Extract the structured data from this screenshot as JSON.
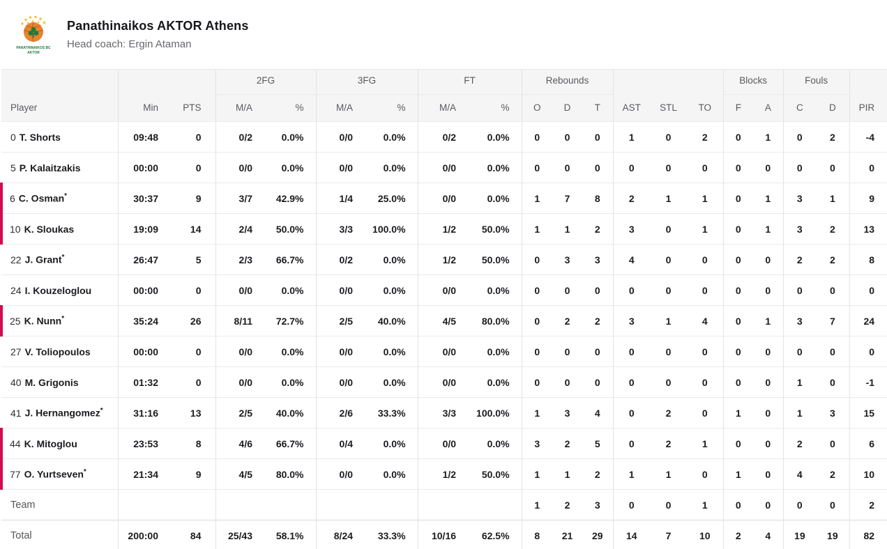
{
  "header": {
    "team_name": "Panathinaikos AKTOR Athens",
    "coach": "Head coach: Ergin Ataman",
    "logo": {
      "line1": "PANATHINAIKOS BC",
      "line2": "AKTOR",
      "ball_color": "#e8832e",
      "clover_color": "#1f7a3d",
      "rays_color": "#f2c233"
    }
  },
  "colors": {
    "on_court_accent": "#d40b4e",
    "header_background": "#f5f5f6",
    "row_border": "#ebebed"
  },
  "table": {
    "group_headers": {
      "fg2": "2FG",
      "fg3": "3FG",
      "ft": "FT",
      "rebounds": "Rebounds",
      "blocks": "Blocks",
      "fouls": "Fouls"
    },
    "columns": {
      "player": "Player",
      "min": "Min",
      "pts": "PTS",
      "ma": "M/A",
      "pct": "%",
      "reb_o": "O",
      "reb_d": "D",
      "reb_t": "T",
      "ast": "AST",
      "stl": "STL",
      "to": "TO",
      "blk_f": "F",
      "blk_a": "A",
      "foul_c": "C",
      "foul_d": "D",
      "pir": "PIR"
    },
    "starter_mark": "*",
    "rows": [
      {
        "number": "0",
        "name": "T. Shorts",
        "starter": false,
        "on_court": false,
        "min": "09:48",
        "pts": "0",
        "fg2_ma": "0/2",
        "fg2_pct": "0.0%",
        "fg3_ma": "0/0",
        "fg3_pct": "0.0%",
        "ft_ma": "0/2",
        "ft_pct": "0.0%",
        "reb_o": "0",
        "reb_d": "0",
        "reb_t": "0",
        "ast": "1",
        "stl": "0",
        "to": "2",
        "blk_f": "0",
        "blk_a": "1",
        "foul_c": "0",
        "foul_d": "2",
        "pir": "-4"
      },
      {
        "number": "5",
        "name": "P. Kalaitzakis",
        "starter": false,
        "on_court": false,
        "min": "00:00",
        "pts": "0",
        "fg2_ma": "0/0",
        "fg2_pct": "0.0%",
        "fg3_ma": "0/0",
        "fg3_pct": "0.0%",
        "ft_ma": "0/0",
        "ft_pct": "0.0%",
        "reb_o": "0",
        "reb_d": "0",
        "reb_t": "0",
        "ast": "0",
        "stl": "0",
        "to": "0",
        "blk_f": "0",
        "blk_a": "0",
        "foul_c": "0",
        "foul_d": "0",
        "pir": "0"
      },
      {
        "number": "6",
        "name": "C. Osman",
        "starter": true,
        "on_court": true,
        "min": "30:37",
        "pts": "9",
        "fg2_ma": "3/7",
        "fg2_pct": "42.9%",
        "fg3_ma": "1/4",
        "fg3_pct": "25.0%",
        "ft_ma": "0/0",
        "ft_pct": "0.0%",
        "reb_o": "1",
        "reb_d": "7",
        "reb_t": "8",
        "ast": "2",
        "stl": "1",
        "to": "1",
        "blk_f": "0",
        "blk_a": "1",
        "foul_c": "3",
        "foul_d": "1",
        "pir": "9"
      },
      {
        "number": "10",
        "name": "K. Sloukas",
        "starter": false,
        "on_court": true,
        "min": "19:09",
        "pts": "14",
        "fg2_ma": "2/4",
        "fg2_pct": "50.0%",
        "fg3_ma": "3/3",
        "fg3_pct": "100.0%",
        "ft_ma": "1/2",
        "ft_pct": "50.0%",
        "reb_o": "1",
        "reb_d": "1",
        "reb_t": "2",
        "ast": "3",
        "stl": "0",
        "to": "1",
        "blk_f": "0",
        "blk_a": "1",
        "foul_c": "3",
        "foul_d": "2",
        "pir": "13"
      },
      {
        "number": "22",
        "name": "J. Grant",
        "starter": true,
        "on_court": false,
        "min": "26:47",
        "pts": "5",
        "fg2_ma": "2/3",
        "fg2_pct": "66.7%",
        "fg3_ma": "0/2",
        "fg3_pct": "0.0%",
        "ft_ma": "1/2",
        "ft_pct": "50.0%",
        "reb_o": "0",
        "reb_d": "3",
        "reb_t": "3",
        "ast": "4",
        "stl": "0",
        "to": "0",
        "blk_f": "0",
        "blk_a": "0",
        "foul_c": "2",
        "foul_d": "2",
        "pir": "8"
      },
      {
        "number": "24",
        "name": "I. Kouzeloglou",
        "starter": false,
        "on_court": false,
        "min": "00:00",
        "pts": "0",
        "fg2_ma": "0/0",
        "fg2_pct": "0.0%",
        "fg3_ma": "0/0",
        "fg3_pct": "0.0%",
        "ft_ma": "0/0",
        "ft_pct": "0.0%",
        "reb_o": "0",
        "reb_d": "0",
        "reb_t": "0",
        "ast": "0",
        "stl": "0",
        "to": "0",
        "blk_f": "0",
        "blk_a": "0",
        "foul_c": "0",
        "foul_d": "0",
        "pir": "0"
      },
      {
        "number": "25",
        "name": "K. Nunn",
        "starter": true,
        "on_court": true,
        "min": "35:24",
        "pts": "26",
        "fg2_ma": "8/11",
        "fg2_pct": "72.7%",
        "fg3_ma": "2/5",
        "fg3_pct": "40.0%",
        "ft_ma": "4/5",
        "ft_pct": "80.0%",
        "reb_o": "0",
        "reb_d": "2",
        "reb_t": "2",
        "ast": "3",
        "stl": "1",
        "to": "4",
        "blk_f": "0",
        "blk_a": "1",
        "foul_c": "3",
        "foul_d": "7",
        "pir": "24"
      },
      {
        "number": "27",
        "name": "V. Toliopoulos",
        "starter": false,
        "on_court": false,
        "min": "00:00",
        "pts": "0",
        "fg2_ma": "0/0",
        "fg2_pct": "0.0%",
        "fg3_ma": "0/0",
        "fg3_pct": "0.0%",
        "ft_ma": "0/0",
        "ft_pct": "0.0%",
        "reb_o": "0",
        "reb_d": "0",
        "reb_t": "0",
        "ast": "0",
        "stl": "0",
        "to": "0",
        "blk_f": "0",
        "blk_a": "0",
        "foul_c": "0",
        "foul_d": "0",
        "pir": "0"
      },
      {
        "number": "40",
        "name": "M. Grigonis",
        "starter": false,
        "on_court": false,
        "min": "01:32",
        "pts": "0",
        "fg2_ma": "0/0",
        "fg2_pct": "0.0%",
        "fg3_ma": "0/0",
        "fg3_pct": "0.0%",
        "ft_ma": "0/0",
        "ft_pct": "0.0%",
        "reb_o": "0",
        "reb_d": "0",
        "reb_t": "0",
        "ast": "0",
        "stl": "0",
        "to": "0",
        "blk_f": "0",
        "blk_a": "0",
        "foul_c": "1",
        "foul_d": "0",
        "pir": "-1"
      },
      {
        "number": "41",
        "name": "J. Hernangomez",
        "starter": true,
        "on_court": false,
        "min": "31:16",
        "pts": "13",
        "fg2_ma": "2/5",
        "fg2_pct": "40.0%",
        "fg3_ma": "2/6",
        "fg3_pct": "33.3%",
        "ft_ma": "3/3",
        "ft_pct": "100.0%",
        "reb_o": "1",
        "reb_d": "3",
        "reb_t": "4",
        "ast": "0",
        "stl": "2",
        "to": "0",
        "blk_f": "1",
        "blk_a": "0",
        "foul_c": "1",
        "foul_d": "3",
        "pir": "15"
      },
      {
        "number": "44",
        "name": "K. Mitoglou",
        "starter": false,
        "on_court": true,
        "min": "23:53",
        "pts": "8",
        "fg2_ma": "4/6",
        "fg2_pct": "66.7%",
        "fg3_ma": "0/4",
        "fg3_pct": "0.0%",
        "ft_ma": "0/0",
        "ft_pct": "0.0%",
        "reb_o": "3",
        "reb_d": "2",
        "reb_t": "5",
        "ast": "0",
        "stl": "2",
        "to": "1",
        "blk_f": "0",
        "blk_a": "0",
        "foul_c": "2",
        "foul_d": "0",
        "pir": "6"
      },
      {
        "number": "77",
        "name": "O. Yurtseven",
        "starter": true,
        "on_court": true,
        "min": "21:34",
        "pts": "9",
        "fg2_ma": "4/5",
        "fg2_pct": "80.0%",
        "fg3_ma": "0/0",
        "fg3_pct": "0.0%",
        "ft_ma": "1/2",
        "ft_pct": "50.0%",
        "reb_o": "1",
        "reb_d": "1",
        "reb_t": "2",
        "ast": "1",
        "stl": "1",
        "to": "0",
        "blk_f": "1",
        "blk_a": "0",
        "foul_c": "4",
        "foul_d": "2",
        "pir": "10"
      }
    ],
    "team_row": {
      "label": "Team",
      "reb_o": "1",
      "reb_d": "2",
      "reb_t": "3",
      "ast": "0",
      "stl": "0",
      "to": "1",
      "blk_f": "0",
      "blk_a": "0",
      "foul_c": "0",
      "foul_d": "0",
      "pir": "2"
    },
    "total_row": {
      "label": "Total",
      "min": "200:00",
      "pts": "84",
      "fg2_ma": "25/43",
      "fg2_pct": "58.1%",
      "fg3_ma": "8/24",
      "fg3_pct": "33.3%",
      "ft_ma": "10/16",
      "ft_pct": "62.5%",
      "reb_o": "8",
      "reb_d": "21",
      "reb_t": "29",
      "ast": "14",
      "stl": "7",
      "to": "10",
      "blk_f": "2",
      "blk_a": "4",
      "foul_c": "19",
      "foul_d": "19",
      "pir": "82"
    }
  }
}
